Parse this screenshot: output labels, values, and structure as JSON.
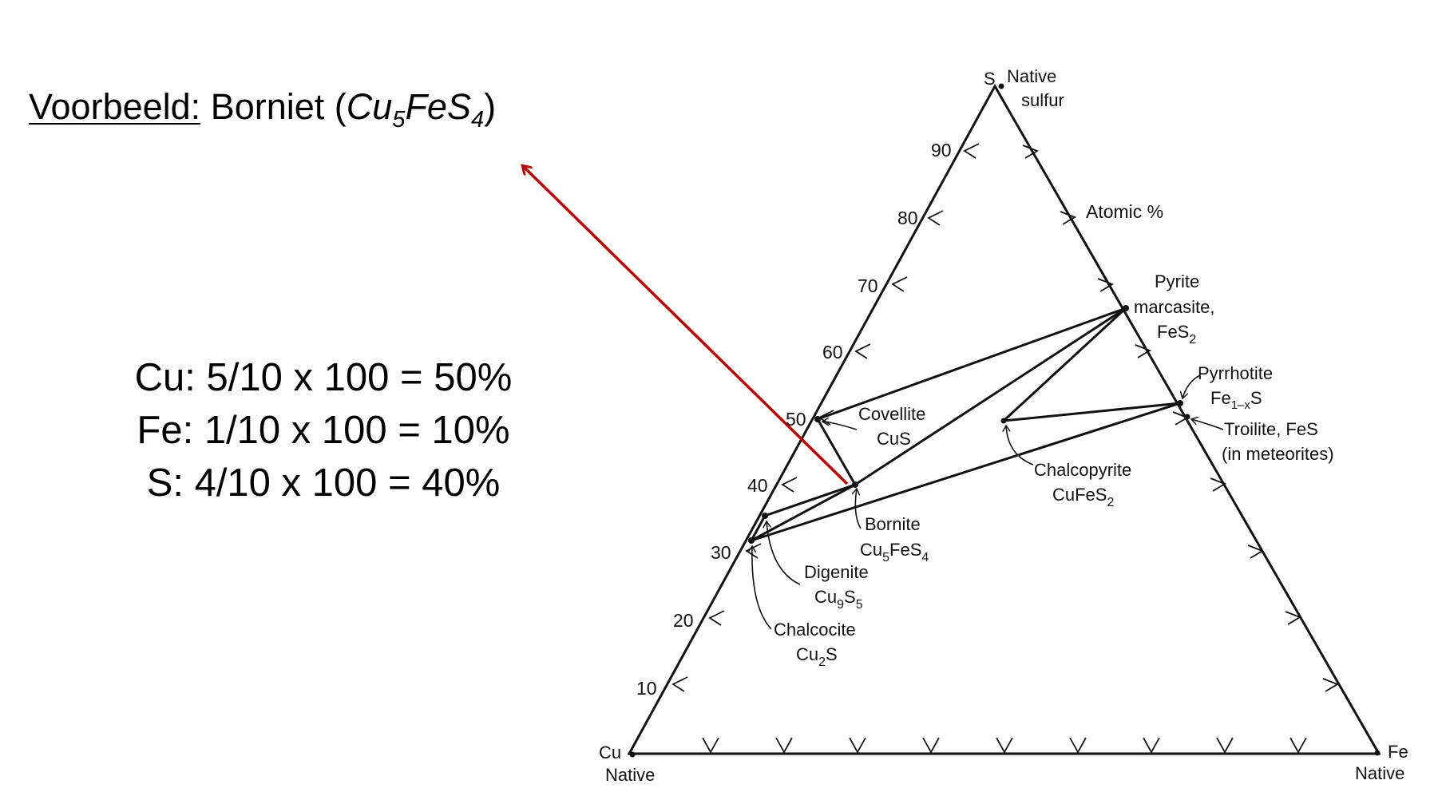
{
  "title": {
    "underlined": "Voorbeeld:",
    "text": " Borniet (",
    "formula_main": "Cu",
    "formula_sub1": "5",
    "formula_mid": "FeS",
    "formula_sub2": "4",
    "close": ")"
  },
  "calc_lines": [
    "Cu: 5/10 x 100 = 50%",
    "Fe: 1/10 x 100 = 10%",
    "S: 4/10 x 100 = 40%"
  ],
  "arrow_color": "#c00000",
  "diagram": {
    "apex_s": "S",
    "apex_s_note1": "Native",
    "apex_s_note2": "sulfur",
    "atomic_label": "Atomic %",
    "tick_labels": [
      "90",
      "80",
      "70",
      "60",
      "50",
      "40",
      "30",
      "20",
      "10"
    ],
    "corner_cu": "Cu",
    "corner_cu_note": "Native",
    "corner_fe": "Fe",
    "corner_fe_note": "Native",
    "minerals": {
      "pyrite1": "Pyrite",
      "pyrite2": "marcasite,",
      "pyrite3_base": "FeS",
      "pyrite3_sub": "2",
      "pyrrhotite1": "Pyrrhotite",
      "pyrrhotite2_base": "Fe",
      "pyrrhotite2_sub": "1–x",
      "pyrrhotite2_end": "S",
      "troilite1": "Troilite, FeS",
      "troilite2": "(in meteorites)",
      "covellite1": "Covellite",
      "covellite2": "CuS",
      "chalcopyrite1": "Chalcopyrite",
      "chalcopyrite2_base": "CuFeS",
      "chalcopyrite2_sub": "2",
      "bornite1": "Bornite",
      "bornite2_a": "Cu",
      "bornite2_s1": "5",
      "bornite2_b": "FeS",
      "bornite2_s2": "4",
      "digenite1": "Digenite",
      "digenite2_a": "Cu",
      "digenite2_s1": "9",
      "digenite2_b": "S",
      "digenite2_s2": "5",
      "chalcocite1": "Chalcocite",
      "chalcocite2_a": "Cu",
      "chalcocite2_s1": "2",
      "chalcocite2_b": "S"
    }
  }
}
